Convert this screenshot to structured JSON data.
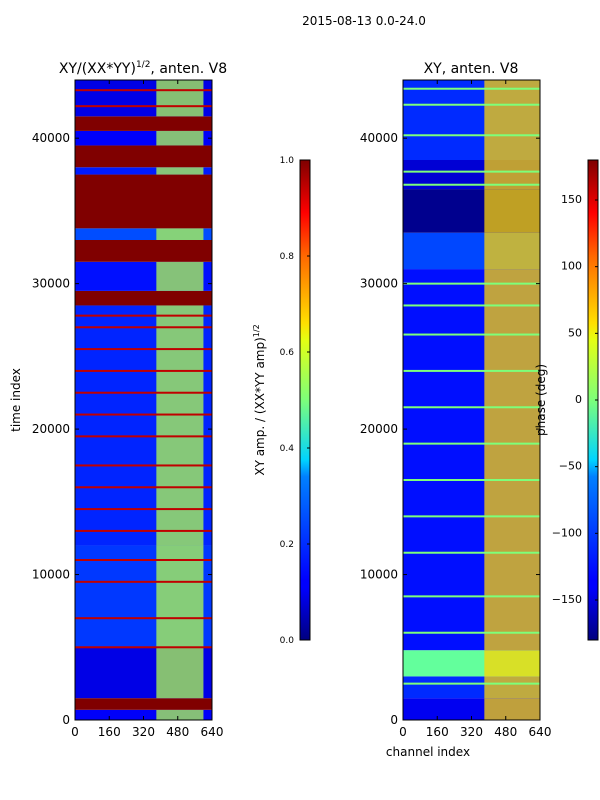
{
  "figure_title": "2015-08-13 0.0-24.0",
  "chart_data": [
    {
      "type": "heatmap",
      "title_main": "XY/(XX*YY)",
      "title_sup": "1/2",
      "title_tail": ", anten. V8",
      "xlabel": "",
      "ylabel": "time index",
      "x_range": [
        0,
        640
      ],
      "y_range": [
        0,
        44000
      ],
      "x_ticks": [
        "0",
        "160",
        "320",
        "480",
        "640"
      ],
      "x_tick_values": [
        0,
        160,
        320,
        480,
        640
      ],
      "y_ticks": [
        "0",
        "10000",
        "20000",
        "30000",
        "40000"
      ],
      "y_tick_values": [
        0,
        10000,
        20000,
        30000,
        40000
      ],
      "colormap": "jet",
      "colorbar": {
        "label_main": "XY amp. / (XX*YY amp)",
        "label_sup": "1/2",
        "range": [
          0.0,
          1.0
        ],
        "ticks": [
          "0.0",
          "0.2",
          "0.4",
          "0.6",
          "0.8",
          "1.0"
        ],
        "tick_values": [
          0.0,
          0.2,
          0.4,
          0.6,
          0.8,
          1.0
        ]
      },
      "regions": [
        {
          "t0": 0,
          "t1": 700,
          "value": 0.12
        },
        {
          "t0": 700,
          "t1": 1500,
          "value": 1.0
        },
        {
          "t0": 1500,
          "t1": 5000,
          "value": 0.1
        },
        {
          "t0": 5000,
          "t1": 12000,
          "value": 0.18
        },
        {
          "t0": 12000,
          "t1": 28500,
          "value": 0.16
        },
        {
          "t0": 28500,
          "t1": 29500,
          "value": 1.0
        },
        {
          "t0": 29500,
          "t1": 31500,
          "value": 0.14
        },
        {
          "t0": 31500,
          "t1": 33000,
          "value": 1.0
        },
        {
          "t0": 33000,
          "t1": 33800,
          "value": 0.2
        },
        {
          "t0": 33800,
          "t1": 37500,
          "value": 1.0
        },
        {
          "t0": 37500,
          "t1": 38000,
          "value": 0.15
        },
        {
          "t0": 38000,
          "t1": 39500,
          "value": 1.0
        },
        {
          "t0": 39500,
          "t1": 40500,
          "value": 0.12
        },
        {
          "t0": 40500,
          "t1": 41500,
          "value": 1.0
        },
        {
          "t0": 41500,
          "t1": 44000,
          "value": 0.1
        }
      ],
      "band_channels": [
        380,
        600
      ],
      "band_value": 0.55,
      "red_line_times": [
        5000,
        7000,
        9500,
        11000,
        13000,
        14500,
        16000,
        17500,
        19500,
        21000,
        22500,
        24000,
        25500,
        27000,
        27800,
        42200,
        43300
      ]
    },
    {
      "type": "heatmap",
      "title": "XY, anten. V8",
      "xlabel": "channel index",
      "ylabel": "",
      "x_range": [
        0,
        640
      ],
      "y_range": [
        0,
        44000
      ],
      "x_ticks": [
        "0",
        "160",
        "320",
        "480",
        "640"
      ],
      "x_tick_values": [
        0,
        160,
        320,
        480,
        640
      ],
      "y_ticks": [
        "0",
        "10000",
        "20000",
        "30000",
        "40000"
      ],
      "y_tick_values": [
        0,
        10000,
        20000,
        30000,
        40000
      ],
      "colormap": "jet",
      "colorbar": {
        "label": "phase (deg)",
        "range": [
          -180,
          180
        ],
        "ticks": [
          "−150",
          "−100",
          "−50",
          "0",
          "50",
          "100",
          "150"
        ],
        "tick_values": [
          -150,
          -100,
          -50,
          0,
          50,
          100,
          150
        ]
      },
      "regions": [
        {
          "t0": 0,
          "t1": 1500,
          "value": -140
        },
        {
          "t0": 1500,
          "t1": 3000,
          "value": -120
        },
        {
          "t0": 3000,
          "t1": 4800,
          "value": -10
        },
        {
          "t0": 4800,
          "t1": 31000,
          "value": -130
        },
        {
          "t0": 31000,
          "t1": 33500,
          "value": -110
        },
        {
          "t0": 33500,
          "t1": 36500,
          "value": -175
        },
        {
          "t0": 36500,
          "t1": 38500,
          "value": -150
        },
        {
          "t0": 38500,
          "t1": 44000,
          "value": -120
        }
      ],
      "band_channels": [
        380,
        640
      ],
      "band_value": 60,
      "green_line_times": [
        2500,
        6000,
        8500,
        11500,
        14000,
        16500,
        19000,
        21500,
        24000,
        26500,
        28500,
        30000,
        36800,
        37700,
        40200,
        42300,
        43400
      ]
    }
  ]
}
